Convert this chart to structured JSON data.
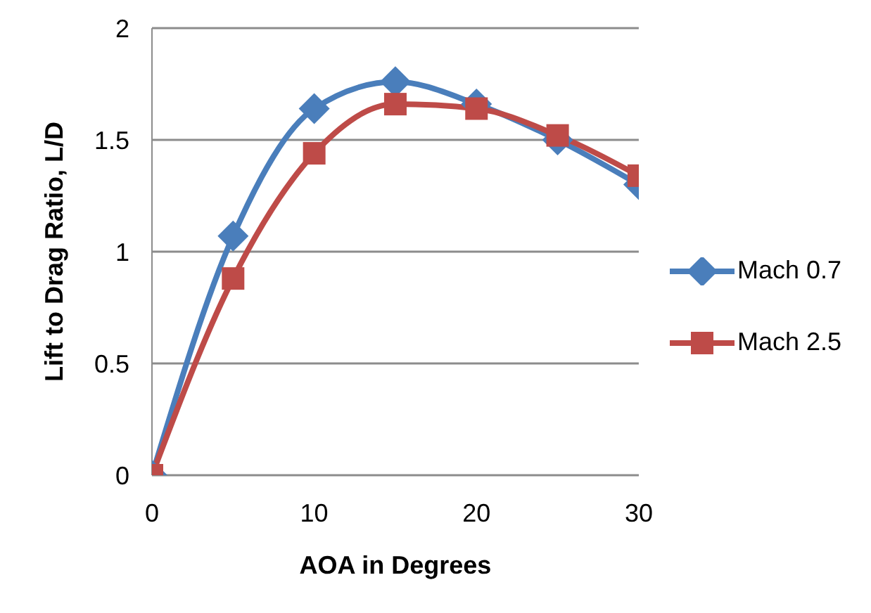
{
  "chart_data": {
    "type": "line",
    "xlabel": "AOA in Degrees",
    "ylabel": "Lift to Drag Ratio, L/D",
    "x": [
      0,
      5,
      10,
      15,
      20,
      25,
      30
    ],
    "series": [
      {
        "name": "Mach 0.7",
        "color": "#4a7ebb",
        "marker": "diamond",
        "values": [
          0,
          1.07,
          1.64,
          1.76,
          1.66,
          1.5,
          1.3
        ]
      },
      {
        "name": "Mach 2.5",
        "color": "#be4b48",
        "marker": "square",
        "values": [
          0,
          0.88,
          1.44,
          1.66,
          1.64,
          1.52,
          1.34
        ]
      }
    ],
    "xlim": [
      0,
      30
    ],
    "xticks": [
      0,
      10,
      20,
      30
    ],
    "ylim": [
      0,
      2
    ],
    "yticks": [
      0,
      0.5,
      1,
      1.5,
      2
    ],
    "grid": "y",
    "legend": "right"
  }
}
